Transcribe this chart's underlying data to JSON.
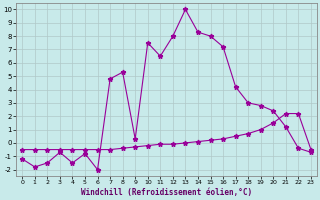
{
  "title": "",
  "xlabel": "Windchill (Refroidissement éolien,°C)",
  "bg_color": "#c8eaea",
  "line_color": "#990099",
  "grid_color": "#b0c8c8",
  "x": [
    0,
    1,
    2,
    3,
    4,
    5,
    6,
    7,
    8,
    9,
    10,
    11,
    12,
    13,
    14,
    15,
    16,
    17,
    18,
    19,
    20,
    21,
    22,
    23
  ],
  "y_main": [
    -1.2,
    -1.8,
    -1.5,
    -0.7,
    -1.5,
    -0.8,
    -2.0,
    4.8,
    5.3,
    0.3,
    7.5,
    6.5,
    8.0,
    10.0,
    8.3,
    8.0,
    7.2,
    4.2,
    3.0,
    2.8,
    2.4,
    1.2,
    -0.4,
    -0.7
  ],
  "y_flat": [
    -0.5,
    -0.5,
    -0.5,
    -0.5,
    -0.5,
    -0.5,
    -0.5,
    -0.5,
    -0.4,
    -0.3,
    -0.2,
    -0.1,
    -0.1,
    0.0,
    0.1,
    0.2,
    0.3,
    0.5,
    0.7,
    1.0,
    1.5,
    2.2,
    2.2,
    -0.5
  ],
  "ylim": [
    -2.5,
    10.5
  ],
  "xlim": [
    -0.5,
    23.5
  ],
  "yticks": [
    -2,
    -1,
    0,
    1,
    2,
    3,
    4,
    5,
    6,
    7,
    8,
    9,
    10
  ],
  "xticks": [
    0,
    1,
    2,
    3,
    4,
    5,
    6,
    7,
    8,
    9,
    10,
    11,
    12,
    13,
    14,
    15,
    16,
    17,
    18,
    19,
    20,
    21,
    22,
    23
  ]
}
